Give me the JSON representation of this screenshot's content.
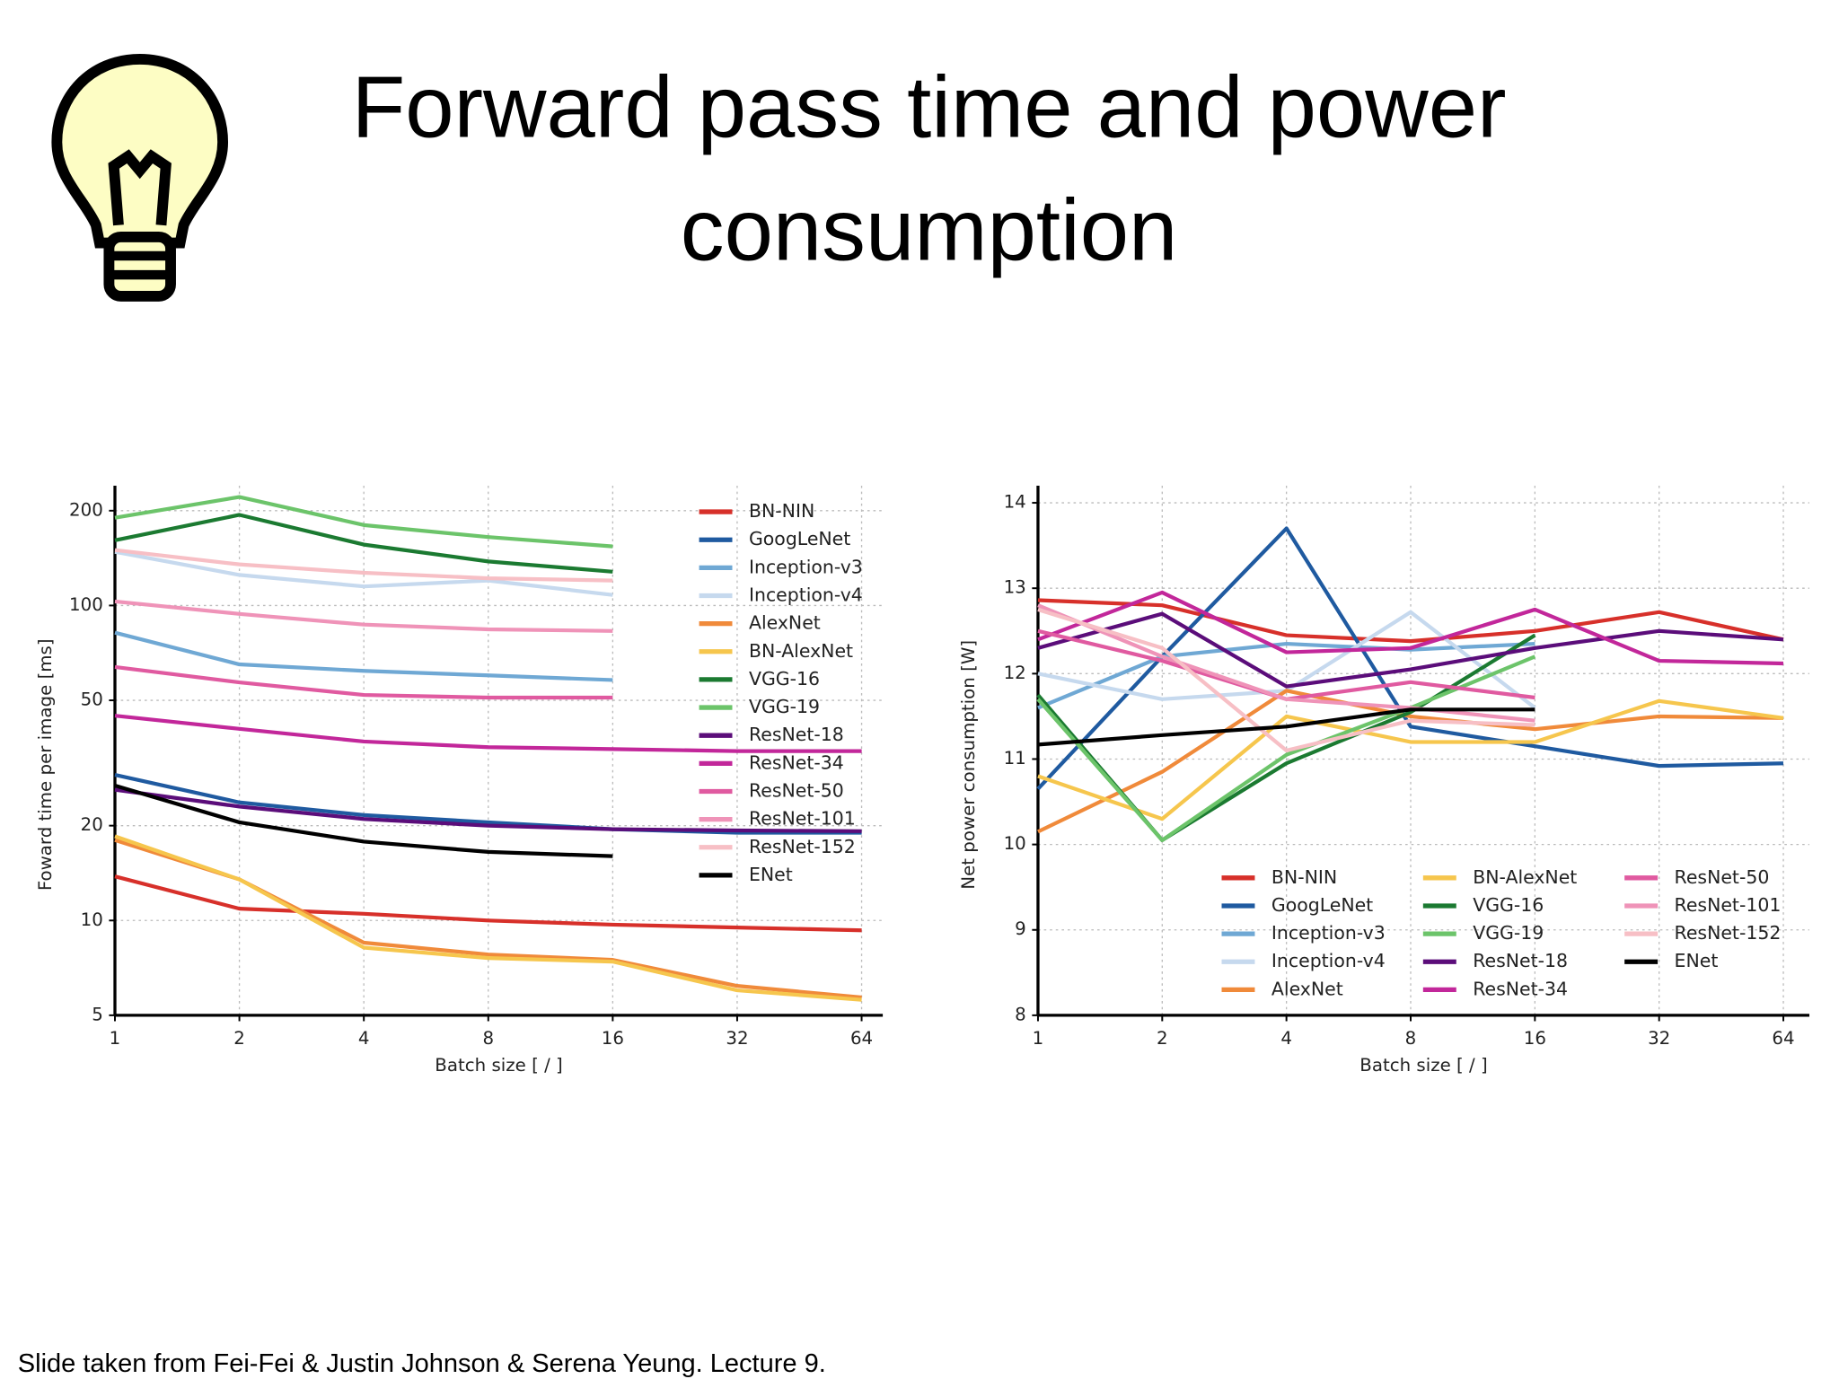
{
  "title": [
    "Forward pass time and power",
    "consumption"
  ],
  "footer": "Slide taken from Fei-Fei & Justin Johnson & Serena Yeung. Lecture 9.",
  "chart_data": [
    {
      "type": "line",
      "xlabel": "Batch size [ / ]",
      "ylabel": "Foward time per image [ms]",
      "x": [
        1,
        2,
        4,
        8,
        16,
        32,
        64
      ],
      "xscale": "log",
      "yscale": "log",
      "xlim": [
        1,
        72
      ],
      "xticks": [
        1,
        2,
        4,
        8,
        16,
        32,
        64
      ],
      "ylim": [
        5,
        240
      ],
      "yticks": [
        5,
        10,
        20,
        50,
        100,
        200
      ],
      "grid": true,
      "legend": "upper right",
      "series": [
        {
          "name": "BN-NIN",
          "color": "#d7302a",
          "values": [
            13.8,
            10.9,
            10.5,
            10,
            9.7,
            9.5,
            9.3
          ]
        },
        {
          "name": "GoogLeNet",
          "color": "#1f5aa0",
          "values": [
            29,
            23.7,
            21.6,
            20.5,
            19.5,
            19,
            19
          ]
        },
        {
          "name": "Inception-v3",
          "color": "#6fa8d4",
          "values": [
            82,
            65,
            62,
            60,
            58,
            null,
            null
          ]
        },
        {
          "name": "Inception-v4",
          "color": "#c6d9ee",
          "values": [
            148,
            125,
            115,
            120,
            108,
            null,
            null
          ]
        },
        {
          "name": "AlexNet",
          "color": "#f08a3a",
          "values": [
            18,
            13.5,
            8.5,
            7.8,
            7.5,
            6.2,
            5.7
          ]
        },
        {
          "name": "BN-AlexNet",
          "color": "#f6c64d",
          "values": [
            18.5,
            13.5,
            8.2,
            7.6,
            7.4,
            6,
            5.6
          ]
        },
        {
          "name": "VGG-16",
          "color": "#1b7a31",
          "values": [
            161,
            194,
            156,
            138,
            128,
            null,
            null
          ]
        },
        {
          "name": "VGG-19",
          "color": "#6cc46a",
          "values": [
            190,
            221,
            180,
            165,
            154,
            null,
            null
          ]
        },
        {
          "name": "ResNet-18",
          "color": "#5b0d7a",
          "values": [
            26,
            23,
            21,
            20,
            19.5,
            19.3,
            19.2
          ]
        },
        {
          "name": "ResNet-34",
          "color": "#c2279a",
          "values": [
            44.7,
            40.6,
            37,
            35.5,
            35,
            34.5,
            34.5
          ]
        },
        {
          "name": "ResNet-50",
          "color": "#e05aa0",
          "values": [
            63.8,
            57,
            52,
            51,
            51,
            null,
            null
          ]
        },
        {
          "name": "ResNet-101",
          "color": "#ef93b8",
          "values": [
            103,
            94,
            87,
            84,
            83,
            null,
            null
          ]
        },
        {
          "name": "ResNet-152",
          "color": "#f7bfc5",
          "values": [
            150,
            135,
            127,
            122,
            120,
            null,
            null
          ]
        },
        {
          "name": "ENet",
          "color": "#000000",
          "values": [
            26.8,
            20.5,
            17.8,
            16.5,
            16,
            null,
            null
          ]
        }
      ]
    },
    {
      "type": "line",
      "xlabel": "Batch size [ / ]",
      "ylabel": "Net power consumption [W]",
      "x": [
        1,
        2,
        4,
        8,
        16,
        32,
        64
      ],
      "xscale": "log",
      "xlim": [
        1,
        74
      ],
      "xticks": [
        1,
        2,
        4,
        8,
        16,
        32,
        64
      ],
      "ylim": [
        8,
        14.2
      ],
      "yticks": [
        8,
        9,
        10,
        11,
        12,
        13,
        14
      ],
      "grid": true,
      "legend": "lower center",
      "series": [
        {
          "name": "BN-NIN",
          "color": "#d7302a",
          "values": [
            12.86,
            12.8,
            12.45,
            12.38,
            12.5,
            12.72,
            12.4
          ]
        },
        {
          "name": "GoogLeNet",
          "color": "#1f5aa0",
          "values": [
            10.65,
            12.2,
            13.7,
            11.38,
            11.15,
            10.92,
            10.95
          ]
        },
        {
          "name": "Inception-v3",
          "color": "#6fa8d4",
          "values": [
            11.6,
            12.2,
            12.35,
            12.28,
            12.35,
            null,
            null
          ]
        },
        {
          "name": "Inception-v4",
          "color": "#c6d9ee",
          "values": [
            12,
            11.7,
            11.8,
            12.72,
            11.6,
            null,
            null
          ]
        },
        {
          "name": "AlexNet",
          "color": "#f08a3a",
          "values": [
            10.15,
            10.85,
            11.8,
            11.5,
            11.35,
            11.5,
            11.48
          ]
        },
        {
          "name": "BN-AlexNet",
          "color": "#f6c64d",
          "values": [
            10.8,
            10.3,
            11.5,
            11.2,
            11.2,
            11.68,
            11.48
          ]
        },
        {
          "name": "VGG-16",
          "color": "#1b7a31",
          "values": [
            11.75,
            10.05,
            10.95,
            11.55,
            12.45,
            null,
            null
          ]
        },
        {
          "name": "VGG-19",
          "color": "#6cc46a",
          "values": [
            11.7,
            10.05,
            11.05,
            11.6,
            12.2,
            null,
            null
          ]
        },
        {
          "name": "ResNet-18",
          "color": "#5b0d7a",
          "values": [
            12.3,
            12.7,
            11.85,
            12.05,
            12.3,
            12.5,
            12.4
          ]
        },
        {
          "name": "ResNet-34",
          "color": "#c2279a",
          "values": [
            12.4,
            12.95,
            12.25,
            12.3,
            12.75,
            12.15,
            12.12
          ]
        },
        {
          "name": "ResNet-50",
          "color": "#e05aa0",
          "values": [
            12.5,
            12.15,
            11.7,
            11.9,
            11.72,
            null,
            null
          ]
        },
        {
          "name": "ResNet-101",
          "color": "#ef93b8",
          "values": [
            12.8,
            12.2,
            11.7,
            11.6,
            11.45,
            null,
            null
          ]
        },
        {
          "name": "ResNet-152",
          "color": "#f7bfc5",
          "values": [
            12.75,
            12.3,
            11.1,
            11.45,
            11.4,
            null,
            null
          ]
        },
        {
          "name": "ENet",
          "color": "#000000",
          "values": [
            11.17,
            11.28,
            11.38,
            11.58,
            11.58,
            null,
            null
          ]
        }
      ]
    }
  ]
}
